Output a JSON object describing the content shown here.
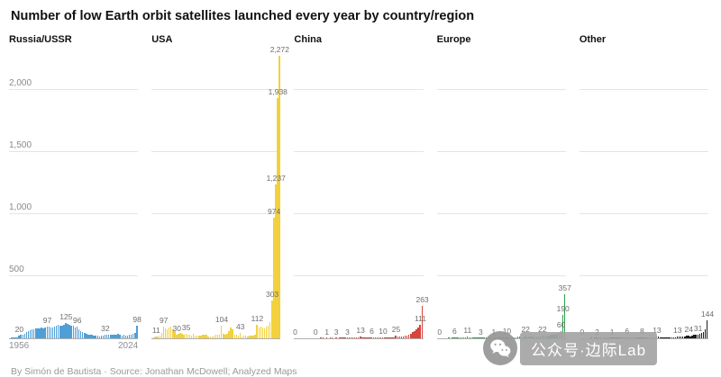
{
  "title": "Number of low Earth orbit satellites launched every year by country/region",
  "footer": "By Simón de Bautista · Source: Jonathan McDowell; Analyzed Maps",
  "watermark": {
    "icon": "wechat-icon",
    "text": "公众号·边际Lab"
  },
  "axis": {
    "y_ticks": [
      {
        "value": 500,
        "label": "500"
      },
      {
        "value": 1000,
        "label": "1,000"
      },
      {
        "value": 1500,
        "label": "1,500"
      },
      {
        "value": 2000,
        "label": "2,000"
      }
    ],
    "x_first": "1956",
    "x_last": "2024"
  },
  "chart_data": {
    "type": "bar",
    "title": "Number of low Earth orbit satellites launched every year by country/region",
    "x_start": 1956,
    "x_end": 2024,
    "ylim": [
      0,
      2300
    ],
    "grid": true,
    "legend_position": "none",
    "panels": [
      {
        "name": "Russia/USSR",
        "color": "#4E9FD6",
        "values": [
          0,
          2,
          1,
          3,
          9,
          20,
          26,
          30,
          38,
          48,
          56,
          66,
          74,
          70,
          80,
          83,
          79,
          86,
          81,
          89,
          97,
          92,
          88,
          90,
          95,
          99,
          106,
          100,
          104,
          110,
          125,
          116,
          107,
          98,
          100,
          88,
          96,
          76,
          60,
          48,
          40,
          34,
          30,
          28,
          26,
          24,
          22,
          20,
          18,
          20,
          24,
          32,
          28,
          30,
          28,
          32,
          28,
          32,
          34,
          30,
          24,
          26,
          22,
          24,
          26,
          28,
          34,
          44,
          98
        ],
        "annotations": [
          {
            "i": 5,
            "t": "20"
          },
          {
            "i": 20,
            "t": "97"
          },
          {
            "i": 30,
            "t": "125"
          },
          {
            "i": 36,
            "t": "96"
          },
          {
            "i": 51,
            "t": "32"
          },
          {
            "i": 68,
            "t": "98"
          }
        ]
      },
      {
        "name": "USA",
        "color": "#F2D13C",
        "values": [
          0,
          3,
          11,
          14,
          22,
          42,
          97,
          80,
          70,
          88,
          92,
          76,
          60,
          30,
          34,
          40,
          33,
          28,
          35,
          31,
          26,
          24,
          33,
          19,
          22,
          20,
          21,
          28,
          32,
          26,
          14,
          16,
          18,
          21,
          28,
          32,
          26,
          104,
          34,
          30,
          33,
          58,
          84,
          70,
          32,
          26,
          22,
          43,
          18,
          20,
          22,
          16,
          20,
          24,
          22,
          28,
          112,
          86,
          92,
          84,
          80,
          96,
          105,
          130,
          303,
          974,
          1237,
          1938,
          2272
        ],
        "annotations": [
          {
            "i": 2,
            "t": "11"
          },
          {
            "i": 6,
            "t": "97"
          },
          {
            "i": 13,
            "t": "30"
          },
          {
            "i": 18,
            "t": "35"
          },
          {
            "i": 37,
            "t": "104"
          },
          {
            "i": 47,
            "t": "43"
          },
          {
            "i": 56,
            "t": "112"
          },
          {
            "i": 64,
            "t": "303"
          },
          {
            "i": 65,
            "t": "974"
          },
          {
            "i": 66,
            "t": "1,237"
          },
          {
            "i": 67,
            "t": "1,938"
          },
          {
            "i": 68,
            "t": "2,272"
          }
        ]
      },
      {
        "name": "China",
        "color": "#D8433C",
        "values": [
          0,
          0,
          0,
          0,
          0,
          0,
          0,
          0,
          0,
          0,
          0,
          0,
          0,
          0,
          1,
          1,
          0,
          1,
          0,
          3,
          2,
          0,
          3,
          0,
          1,
          3,
          1,
          2,
          3,
          1,
          2,
          2,
          4,
          1,
          6,
          13,
          8,
          2,
          4,
          3,
          2,
          6,
          4,
          5,
          5,
          2,
          4,
          10,
          8,
          5,
          6,
          9,
          7,
          8,
          25,
          16,
          14,
          18,
          16,
          20,
          22,
          28,
          34,
          48,
          60,
          76,
          90,
          111,
          263
        ],
        "annotations": [
          {
            "i": 0,
            "t": "0"
          },
          {
            "i": 11,
            "t": "0"
          },
          {
            "i": 17,
            "t": "1"
          },
          {
            "i": 22,
            "t": "3"
          },
          {
            "i": 28,
            "t": "3"
          },
          {
            "i": 35,
            "t": "13"
          },
          {
            "i": 41,
            "t": "6"
          },
          {
            "i": 47,
            "t": "10"
          },
          {
            "i": 54,
            "t": "25"
          },
          {
            "i": 67,
            "t": "111"
          },
          {
            "i": 68,
            "t": "263"
          }
        ]
      },
      {
        "name": "Europe",
        "color": "#2BA24C",
        "values": [
          0,
          0,
          0,
          0,
          0,
          0,
          1,
          0,
          1,
          6,
          2,
          3,
          2,
          3,
          4,
          5,
          11,
          4,
          6,
          5,
          3,
          4,
          6,
          3,
          4,
          6,
          3,
          5,
          7,
          6,
          1,
          5,
          7,
          5,
          8,
          7,
          4,
          10,
          8,
          9,
          7,
          9,
          10,
          11,
          12,
          8,
          9,
          22,
          10,
          11,
          12,
          13,
          11,
          15,
          13,
          14,
          22,
          20,
          18,
          20,
          24,
          26,
          30,
          28,
          34,
          42,
          60,
          190,
          357
        ],
        "annotations": [
          {
            "i": 1,
            "t": "0"
          },
          {
            "i": 9,
            "t": "6"
          },
          {
            "i": 16,
            "t": "11"
          },
          {
            "i": 23,
            "t": "3"
          },
          {
            "i": 30,
            "t": "1"
          },
          {
            "i": 37,
            "t": "10"
          },
          {
            "i": 47,
            "t": "22"
          },
          {
            "i": 56,
            "t": "22"
          },
          {
            "i": 66,
            "t": "60"
          },
          {
            "i": 67,
            "t": "190"
          },
          {
            "i": 68,
            "t": "357"
          }
        ]
      },
      {
        "name": "Other",
        "color": "#1C1C1C",
        "values": [
          0,
          0,
          0,
          0,
          0,
          0,
          1,
          0,
          1,
          2,
          1,
          1,
          0,
          1,
          2,
          1,
          2,
          1,
          2,
          3,
          2,
          1,
          2,
          3,
          4,
          6,
          3,
          4,
          5,
          4,
          3,
          4,
          6,
          8,
          6,
          5,
          7,
          6,
          9,
          7,
          10,
          13,
          11,
          9,
          8,
          7,
          6,
          8,
          7,
          9,
          8,
          10,
          13,
          12,
          11,
          14,
          13,
          20,
          24,
          18,
          21,
          26,
          29,
          31,
          34,
          40,
          52,
          70,
          144
        ],
        "annotations": [
          {
            "i": 1,
            "t": "0"
          },
          {
            "i": 9,
            "t": "2"
          },
          {
            "i": 17,
            "t": "1"
          },
          {
            "i": 25,
            "t": "6"
          },
          {
            "i": 33,
            "t": "8"
          },
          {
            "i": 41,
            "t": "13"
          },
          {
            "i": 52,
            "t": "13"
          },
          {
            "i": 58,
            "t": "24"
          },
          {
            "i": 63,
            "t": "31"
          },
          {
            "i": 68,
            "t": "144"
          }
        ]
      }
    ]
  }
}
